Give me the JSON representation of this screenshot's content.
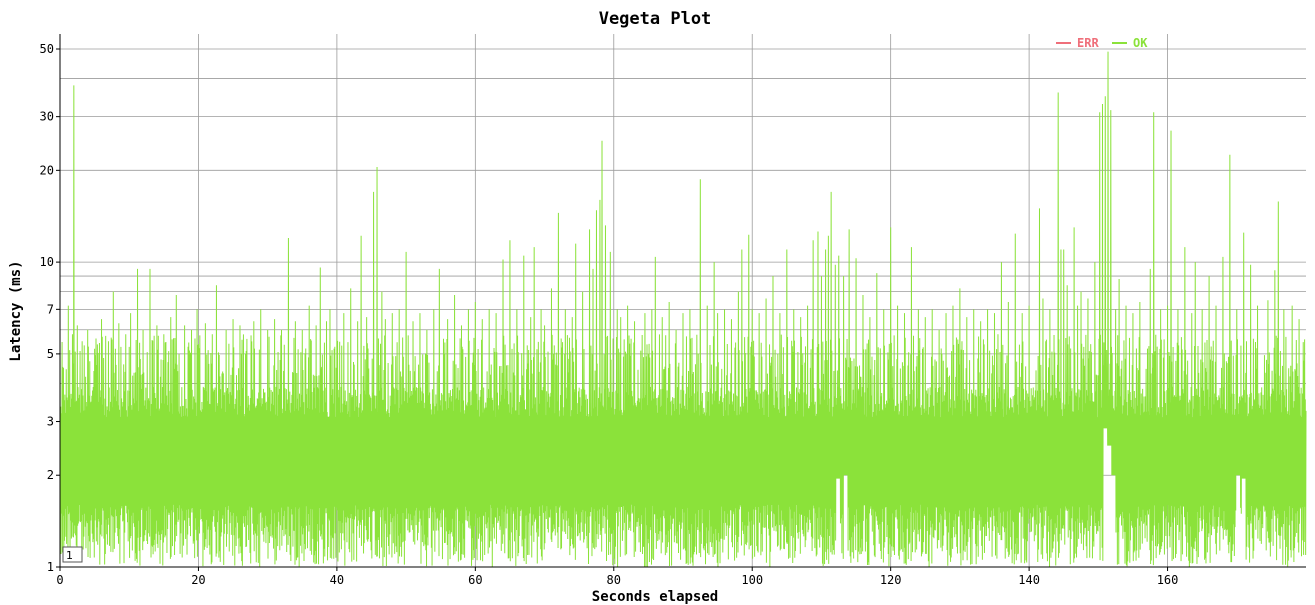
{
  "chart_data": {
    "type": "line",
    "title": "Vegeta Plot",
    "xlabel": "Seconds elapsed",
    "ylabel": "Latency (ms)",
    "y_scale": "log",
    "xlim": [
      0,
      180
    ],
    "ylim": [
      1,
      56
    ],
    "x_ticks": [
      "0",
      "20",
      "40",
      "60",
      "80",
      "100",
      "120",
      "140",
      "160"
    ],
    "y_ticks": [
      "1",
      "2",
      "3",
      "5",
      "7",
      "10",
      "20",
      "30",
      "50"
    ],
    "grid": true,
    "legend_position": "top-right",
    "range_selector_label": "1",
    "series": [
      {
        "name": "ERR",
        "color": "#ef6f7a",
        "points": []
      },
      {
        "name": "OK",
        "color": "#8be23a",
        "baseline_range": [
          1.0,
          3.9
        ],
        "spikes": [
          [
            0.5,
            4.5
          ],
          [
            1.2,
            7.2
          ],
          [
            1.8,
            5.8
          ],
          [
            2.0,
            38
          ],
          [
            2.5,
            6.2
          ],
          [
            3.2,
            5.5
          ],
          [
            4.0,
            6.0
          ],
          [
            5.0,
            5.2
          ],
          [
            6.0,
            6.5
          ],
          [
            7.0,
            5.5
          ],
          [
            7.7,
            8.0
          ],
          [
            8.5,
            6.3
          ],
          [
            9.5,
            5.8
          ],
          [
            10.2,
            6.8
          ],
          [
            11.2,
            9.5
          ],
          [
            12.0,
            6.0
          ],
          [
            13.0,
            9.5
          ],
          [
            14.0,
            6.2
          ],
          [
            15.0,
            5.8
          ],
          [
            16.0,
            6.6
          ],
          [
            16.8,
            7.8
          ],
          [
            18.0,
            6.2
          ],
          [
            19.0,
            6.0
          ],
          [
            19.8,
            7.0
          ],
          [
            21.0,
            6.3
          ],
          [
            22.0,
            5.8
          ],
          [
            22.6,
            8.4
          ],
          [
            24.0,
            6.0
          ],
          [
            25.0,
            6.5
          ],
          [
            26.0,
            6.2
          ],
          [
            27.0,
            5.6
          ],
          [
            28.0,
            6.4
          ],
          [
            29.0,
            7.0
          ],
          [
            30.0,
            6.0
          ],
          [
            31.0,
            6.5
          ],
          [
            32.0,
            6.0
          ],
          [
            33.0,
            12.0
          ],
          [
            34.0,
            6.4
          ],
          [
            35.0,
            6.0
          ],
          [
            36.0,
            7.2
          ],
          [
            37.0,
            6.2
          ],
          [
            37.6,
            9.6
          ],
          [
            38.5,
            6.4
          ],
          [
            39.0,
            7.0
          ],
          [
            40.0,
            6.0
          ],
          [
            41.0,
            6.8
          ],
          [
            42.0,
            8.2
          ],
          [
            43.0,
            6.4
          ],
          [
            43.5,
            12.2
          ],
          [
            44.3,
            6.6
          ],
          [
            45.3,
            17.0
          ],
          [
            45.8,
            20.5
          ],
          [
            46.5,
            8.0
          ],
          [
            47.0,
            6.5
          ],
          [
            48.0,
            6.8
          ],
          [
            49.0,
            7.0
          ],
          [
            50.0,
            10.8
          ],
          [
            51.0,
            6.4
          ],
          [
            52.0,
            6.8
          ],
          [
            53.0,
            6.0
          ],
          [
            54.0,
            7.0
          ],
          [
            54.8,
            9.5
          ],
          [
            56.0,
            6.5
          ],
          [
            57.0,
            7.8
          ],
          [
            58.0,
            6.2
          ],
          [
            59.0,
            7.0
          ],
          [
            60.0,
            7.4
          ],
          [
            61.0,
            6.5
          ],
          [
            62.0,
            7.0
          ],
          [
            63.0,
            6.8
          ],
          [
            64.0,
            10.2
          ],
          [
            65.0,
            11.8
          ],
          [
            66.0,
            7.0
          ],
          [
            67.0,
            10.5
          ],
          [
            68.0,
            6.6
          ],
          [
            68.5,
            11.2
          ],
          [
            69.5,
            7.0
          ],
          [
            70.0,
            6.2
          ],
          [
            71.0,
            8.2
          ],
          [
            72.0,
            14.5
          ],
          [
            73.0,
            7.0
          ],
          [
            74.0,
            6.6
          ],
          [
            74.5,
            11.5
          ],
          [
            75.5,
            8.0
          ],
          [
            76.5,
            12.8
          ],
          [
            77.0,
            9.5
          ],
          [
            77.5,
            14.8
          ],
          [
            78.0,
            16.0
          ],
          [
            78.3,
            25.0
          ],
          [
            78.8,
            13.2
          ],
          [
            79.5,
            10.8
          ],
          [
            80.5,
            7.0
          ],
          [
            81.0,
            6.6
          ],
          [
            82.0,
            7.2
          ],
          [
            83.0,
            6.4
          ],
          [
            84.5,
            6.8
          ],
          [
            85.5,
            7.0
          ],
          [
            86.0,
            10.4
          ],
          [
            87.0,
            6.6
          ],
          [
            88.0,
            7.4
          ],
          [
            89.0,
            6.0
          ],
          [
            90.0,
            6.8
          ],
          [
            91.0,
            7.0
          ],
          [
            92.5,
            18.7
          ],
          [
            93.5,
            7.2
          ],
          [
            94.5,
            10.0
          ],
          [
            95.0,
            6.8
          ],
          [
            96.0,
            7.0
          ],
          [
            97.0,
            6.5
          ],
          [
            98.0,
            8.0
          ],
          [
            98.5,
            11.0
          ],
          [
            99.5,
            12.3
          ],
          [
            100.0,
            7.0
          ],
          [
            101.0,
            6.8
          ],
          [
            102.0,
            7.6
          ],
          [
            103.0,
            9.0
          ],
          [
            104.0,
            6.8
          ],
          [
            105.0,
            11.0
          ],
          [
            106.0,
            7.0
          ],
          [
            107.0,
            6.6
          ],
          [
            108.0,
            7.2
          ],
          [
            108.8,
            11.8
          ],
          [
            109.5,
            12.6
          ],
          [
            110.0,
            9.0
          ],
          [
            110.6,
            11.0
          ],
          [
            111.0,
            12.2
          ],
          [
            111.4,
            17.0
          ],
          [
            112.0,
            9.8
          ],
          [
            112.5,
            10.5
          ],
          [
            113.2,
            9.0
          ],
          [
            114.0,
            12.8
          ],
          [
            115.0,
            10.3
          ],
          [
            116.0,
            7.8
          ],
          [
            117.0,
            6.6
          ],
          [
            118.0,
            9.2
          ],
          [
            119.0,
            7.0
          ],
          [
            120.0,
            13.0
          ],
          [
            121.0,
            7.2
          ],
          [
            122.0,
            6.8
          ],
          [
            123.0,
            11.2
          ],
          [
            124.0,
            7.0
          ],
          [
            125.0,
            6.6
          ],
          [
            126.0,
            7.0
          ],
          [
            127.0,
            6.0
          ],
          [
            128.0,
            6.8
          ],
          [
            129.0,
            7.2
          ],
          [
            130.0,
            8.2
          ],
          [
            131.0,
            6.6
          ],
          [
            132.0,
            7.0
          ],
          [
            133.0,
            6.4
          ],
          [
            134.0,
            7.0
          ],
          [
            135.0,
            6.8
          ],
          [
            136.0,
            10.0
          ],
          [
            137.0,
            7.4
          ],
          [
            138.0,
            12.4
          ],
          [
            139.0,
            6.8
          ],
          [
            140.0,
            7.2
          ],
          [
            141.5,
            15.0
          ],
          [
            142.0,
            7.6
          ],
          [
            143.0,
            7.0
          ],
          [
            144.2,
            36.0
          ],
          [
            144.6,
            11.0
          ],
          [
            145.0,
            11.0
          ],
          [
            145.5,
            8.4
          ],
          [
            146.5,
            13.0
          ],
          [
            147.0,
            7.2
          ],
          [
            147.5,
            8.0
          ],
          [
            148.5,
            7.6
          ],
          [
            149.5,
            10.0
          ],
          [
            150.2,
            31.0
          ],
          [
            150.6,
            33.0
          ],
          [
            151.0,
            35.0
          ],
          [
            151.4,
            49.0
          ],
          [
            151.8,
            31.5
          ],
          [
            152.5,
            7.0
          ],
          [
            153.0,
            8.8
          ],
          [
            154.0,
            7.2
          ],
          [
            155.0,
            6.8
          ],
          [
            156.0,
            7.4
          ],
          [
            157.5,
            9.5
          ],
          [
            158.0,
            31.0
          ],
          [
            159.0,
            7.0
          ],
          [
            160.0,
            7.2
          ],
          [
            160.5,
            27.0
          ],
          [
            161.5,
            7.0
          ],
          [
            162.5,
            11.2
          ],
          [
            163.5,
            6.8
          ],
          [
            164.0,
            10.0
          ],
          [
            165.0,
            7.0
          ],
          [
            166.0,
            9.0
          ],
          [
            167.0,
            7.2
          ],
          [
            168.0,
            10.4
          ],
          [
            169.0,
            22.5
          ],
          [
            170.0,
            7.0
          ],
          [
            171.0,
            12.5
          ],
          [
            172.0,
            9.8
          ],
          [
            173.0,
            7.2
          ],
          [
            174.5,
            7.5
          ],
          [
            175.5,
            9.4
          ],
          [
            176.0,
            15.8
          ],
          [
            176.8,
            7.0
          ],
          [
            178.0,
            7.2
          ],
          [
            179.0,
            6.5
          ]
        ],
        "dips": [
          [
            112.4,
            1.95
          ],
          [
            113.5,
            2.0
          ],
          [
            151.0,
            2.85
          ],
          [
            151.6,
            2.5
          ],
          [
            152.2,
            2.0
          ],
          [
            170.2,
            2.0
          ],
          [
            171.0,
            1.95
          ]
        ]
      }
    ]
  }
}
